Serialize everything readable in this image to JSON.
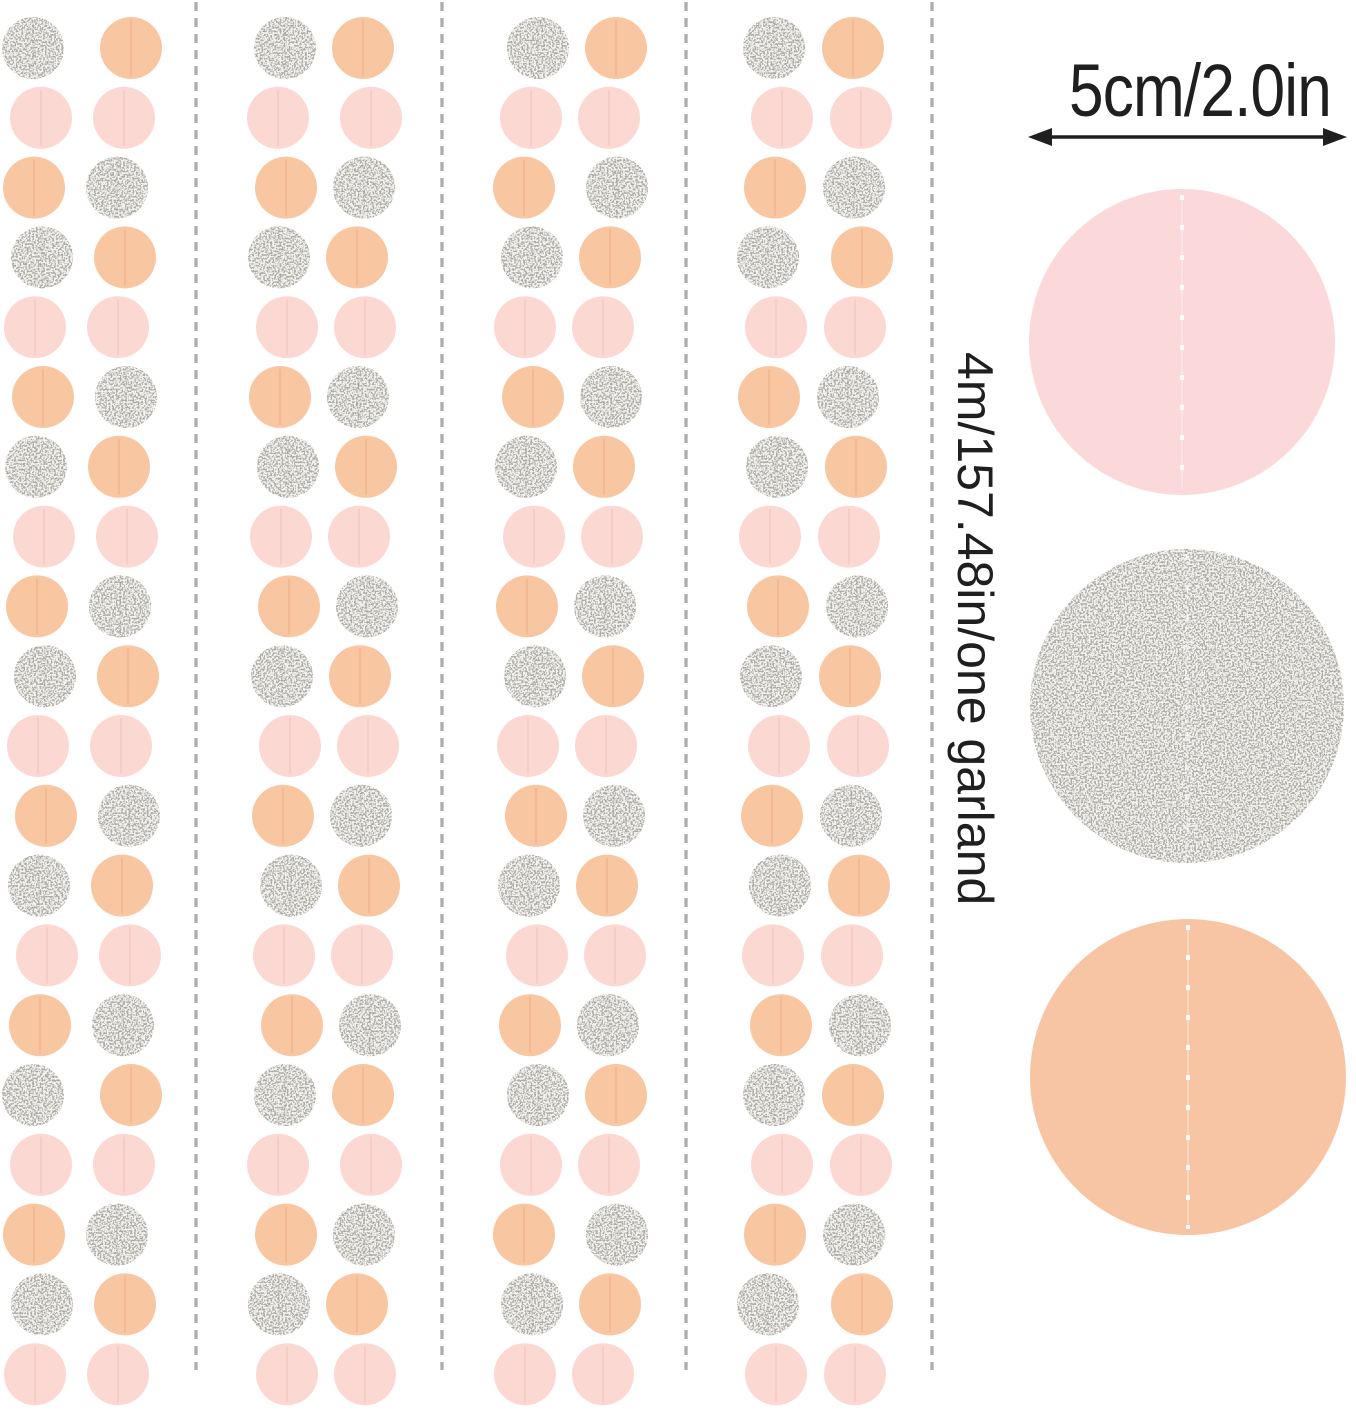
{
  "annotations": {
    "diameter_label": "5cm/2.0in",
    "length_label": "4m/157.48in/one garland"
  },
  "colors": {
    "peach_dot": "#f9c6a2",
    "pink_dot": "#fcd8d3",
    "silver_base": "#f4f3f0",
    "silver_speck": "#aca9a5",
    "big_pink": "#fbd9da",
    "big_peach": "#f8c5a4",
    "separator": "#aeaeae",
    "annotation_text": "#1f1f1f",
    "stitch_thread": "#ffffff"
  },
  "garland": {
    "strip_count": 4,
    "rows_per_strip": 20,
    "columns_per_strip": 2,
    "dot_colors_cycle": [
      [
        "silver",
        "peach"
      ],
      [
        "pink",
        "pink"
      ],
      [
        "peach",
        "silver"
      ]
    ]
  },
  "swatches": [
    {
      "name": "pink-paper-circle",
      "fill": "pink"
    },
    {
      "name": "silver-glitter-circle",
      "fill": "silver"
    },
    {
      "name": "peach-paper-circle",
      "fill": "peach"
    }
  ]
}
